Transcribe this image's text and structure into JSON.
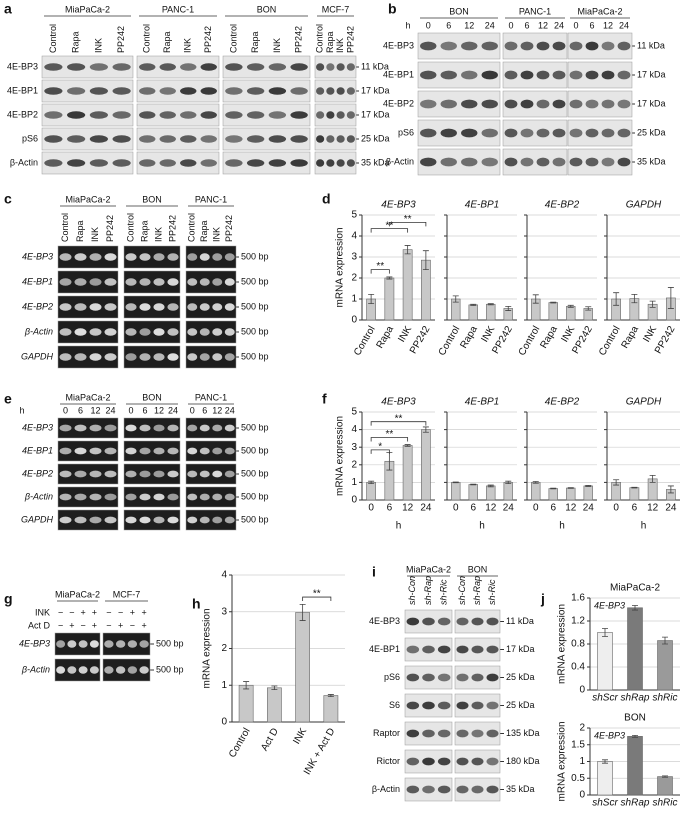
{
  "panels": [
    {
      "letter": "a",
      "groups": [
        {
          "name": "MiaPaCa-2",
          "lanes": [
            "Control",
            "Rapa",
            "INK",
            "PP242"
          ]
        },
        {
          "name": "PANC-1",
          "lanes": [
            "Control",
            "Rapa",
            "INK",
            "PP242"
          ]
        },
        {
          "name": "BON",
          "lanes": [
            "Control",
            "Rapa",
            "INK",
            "PP242"
          ]
        },
        {
          "name": "MCF-7",
          "lanes": [
            "Control",
            "Rapa",
            "INK",
            "PP242"
          ]
        }
      ],
      "rows": [
        {
          "name": "4E-BP3",
          "size": "11 kDa"
        },
        {
          "name": "4E-BP1",
          "size": "17 kDa"
        },
        {
          "name": "4E-BP2",
          "size": "17 kDa"
        },
        {
          "name": "pS6",
          "size": "25 kDa"
        },
        {
          "name": "β-Actin",
          "size": "35 kDa"
        }
      ]
    },
    {
      "letter": "b",
      "time_label": "h",
      "groups": [
        {
          "name": "BON",
          "lanes": [
            "0",
            "6",
            "12",
            "24"
          ]
        },
        {
          "name": "PANC-1",
          "lanes": [
            "0",
            "6",
            "12",
            "24"
          ]
        },
        {
          "name": "MiaPaCa-2",
          "lanes": [
            "0",
            "6",
            "12",
            "24"
          ]
        }
      ],
      "rows": [
        {
          "name": "4E-BP3",
          "size": "11 kDa"
        },
        {
          "name": "4E-BP1",
          "size": "17 kDa"
        },
        {
          "name": "4E-BP2",
          "size": "17 kDa"
        },
        {
          "name": "pS6",
          "size": "25 kDa"
        },
        {
          "name": "β-Actin",
          "size": "35 kDa"
        }
      ]
    },
    {
      "letter": "c",
      "groups": [
        {
          "name": "MiaPaCa-2",
          "lanes": [
            "Control",
            "Rapa",
            "INK",
            "PP242"
          ]
        },
        {
          "name": "BON",
          "lanes": [
            "Control",
            "Rapa",
            "INK",
            "PP242"
          ]
        },
        {
          "name": "PANC-1",
          "lanes": [
            "Control",
            "Rapa",
            "INK",
            "PP242"
          ]
        }
      ],
      "rows": [
        {
          "name": "4E-BP3",
          "size": "500 bp"
        },
        {
          "name": "4E-BP1",
          "size": "500 bp"
        },
        {
          "name": "4E-BP2",
          "size": "500 bp"
        },
        {
          "name": "β-Actin",
          "size": "500 bp"
        },
        {
          "name": "GAPDH",
          "size": "500 bp"
        }
      ]
    },
    {
      "letter": "e",
      "time_label": "h",
      "groups": [
        {
          "name": "MiaPaCa-2",
          "lanes": [
            "0",
            "6",
            "12",
            "24"
          ]
        },
        {
          "name": "BON",
          "lanes": [
            "0",
            "6",
            "12",
            "24"
          ]
        },
        {
          "name": "PANC-1",
          "lanes": [
            "0",
            "6",
            "12",
            "24"
          ]
        }
      ],
      "rows": [
        {
          "name": "4E-BP3",
          "size": "500 bp"
        },
        {
          "name": "4E-BP1",
          "size": "500 bp"
        },
        {
          "name": "4E-BP2",
          "size": "500 bp"
        },
        {
          "name": "β-Actin",
          "size": "500 bp"
        },
        {
          "name": "GAPDH",
          "size": "500 bp"
        }
      ]
    },
    {
      "letter": "g",
      "groups": [
        {
          "name": "MiaPaCa-2"
        },
        {
          "name": "MCF-7"
        }
      ],
      "conditions": [
        {
          "name": "INK",
          "signs": [
            "−",
            "−",
            "+",
            "+",
            "−",
            "−",
            "+",
            "+"
          ]
        },
        {
          "name": "Act D",
          "signs": [
            "−",
            "+",
            "−",
            "+",
            "−",
            "+",
            "−",
            "+"
          ]
        }
      ],
      "rows": [
        {
          "name": "4E-BP3",
          "size": "500 bp"
        },
        {
          "name": "β-Actin",
          "size": "500 bp"
        }
      ]
    },
    {
      "letter": "i",
      "groups": [
        {
          "name": "MiaPaCa-2",
          "lanes": [
            "sh-Con",
            "sh-Rap",
            "sh-Ric"
          ]
        },
        {
          "name": "BON",
          "lanes": [
            "sh-Con",
            "sh-Rap",
            "sh-Ric"
          ]
        }
      ],
      "rows": [
        {
          "name": "4E-BP3",
          "size": "11 kDa"
        },
        {
          "name": "4E-BP1",
          "size": "17 kDa"
        },
        {
          "name": "pS6",
          "size": "25 kDa"
        },
        {
          "name": "S6",
          "size": "25 kDa"
        },
        {
          "name": "Raptor",
          "size": "135 kDa"
        },
        {
          "name": "Rictor",
          "size": "180 kDa"
        },
        {
          "name": "β-Actin",
          "size": "35 kDa"
        }
      ]
    }
  ],
  "chart_data": [
    {
      "type": "bar",
      "letter": "d",
      "title": "4E-BP3",
      "ylabel": "mRNA expression",
      "categories": [
        "Control",
        "Rapa",
        "INK",
        "PP242"
      ],
      "values": [
        1,
        2,
        3.35,
        2.85
      ],
      "errors": [
        0.22,
        0.05,
        0.2,
        0.45
      ],
      "ylim": [
        0,
        5
      ],
      "yticks": [
        0,
        1,
        2,
        3,
        4,
        5
      ],
      "grid": true,
      "color": "#c8c8c8",
      "rotate_labels": true,
      "annotations": [
        "**",
        "**",
        "**"
      ]
    },
    {
      "type": "bar",
      "title": "4E-BP1",
      "categories": [
        "Control",
        "Rapa",
        "INK",
        "PP242"
      ],
      "values": [
        1,
        0.72,
        0.75,
        0.55
      ],
      "errors": [
        0.15,
        0.03,
        0.03,
        0.1
      ],
      "ylim": [
        0,
        5
      ],
      "yticks": [
        0,
        1,
        2,
        3,
        4,
        5
      ],
      "tick_labels": false,
      "grid": true,
      "color": "#c8c8c8",
      "rotate_labels": true
    },
    {
      "type": "bar",
      "title": "4E-BP2",
      "categories": [
        "Control",
        "Rapa",
        "INK",
        "PP242"
      ],
      "values": [
        1,
        0.83,
        0.65,
        0.55
      ],
      "errors": [
        0.2,
        0.02,
        0.05,
        0.08
      ],
      "ylim": [
        0,
        5
      ],
      "yticks": [
        0,
        1,
        2,
        3,
        4,
        5
      ],
      "tick_labels": false,
      "grid": true,
      "color": "#c8c8c8",
      "rotate_labels": true
    },
    {
      "type": "bar",
      "title": "GAPDH",
      "categories": [
        "Control",
        "Rapa",
        "INK",
        "PP242"
      ],
      "values": [
        1,
        1.02,
        0.75,
        1.05
      ],
      "errors": [
        0.3,
        0.2,
        0.15,
        0.5
      ],
      "ylim": [
        0,
        5
      ],
      "yticks": [
        0,
        1,
        2,
        3,
        4,
        5
      ],
      "tick_labels": false,
      "grid": true,
      "color": "#c8c8c8",
      "rotate_labels": true
    },
    {
      "type": "bar",
      "letter": "f",
      "title": "4E-BP3",
      "ylabel": "mRNA expression",
      "xlabel": "h",
      "categories": [
        "0",
        "6",
        "12",
        "24"
      ],
      "values": [
        1,
        2.2,
        3.1,
        4
      ],
      "errors": [
        0.07,
        0.5,
        0.05,
        0.15
      ],
      "ylim": [
        0,
        5
      ],
      "yticks": [
        0,
        1,
        2,
        3,
        4,
        5
      ],
      "grid": true,
      "color": "#c8c8c8",
      "annotations": [
        "*",
        "**",
        "**"
      ]
    },
    {
      "type": "bar",
      "title": "4E-BP1",
      "xlabel": "h",
      "categories": [
        "0",
        "6",
        "12",
        "24"
      ],
      "values": [
        1,
        0.88,
        0.8,
        1.0
      ],
      "errors": [
        0.02,
        0.02,
        0.05,
        0.07
      ],
      "ylim": [
        0,
        5
      ],
      "yticks": [
        0,
        1,
        2,
        3,
        4,
        5
      ],
      "tick_labels": false,
      "grid": true,
      "color": "#c8c8c8"
    },
    {
      "type": "bar",
      "title": "4E-BP2",
      "xlabel": "h",
      "categories": [
        "0",
        "6",
        "12",
        "24"
      ],
      "values": [
        1,
        0.65,
        0.68,
        0.8
      ],
      "errors": [
        0.05,
        0.02,
        0.02,
        0.03
      ],
      "ylim": [
        0,
        5
      ],
      "yticks": [
        0,
        1,
        2,
        3,
        4,
        5
      ],
      "tick_labels": false,
      "grid": true,
      "color": "#c8c8c8"
    },
    {
      "type": "bar",
      "title": "GAPDH",
      "xlabel": "h",
      "categories": [
        "0",
        "6",
        "12",
        "24"
      ],
      "values": [
        1,
        0.7,
        1.2,
        0.6
      ],
      "errors": [
        0.15,
        0.02,
        0.2,
        0.2
      ],
      "ylim": [
        0,
        5
      ],
      "yticks": [
        0,
        1,
        2,
        3,
        4,
        5
      ],
      "tick_labels": false,
      "grid": true,
      "color": "#c8c8c8"
    },
    {
      "type": "bar",
      "letter": "h",
      "ylabel": "mRNA expression",
      "categories": [
        "Control",
        "Act D",
        "INK",
        "INK + Act D"
      ],
      "values": [
        1,
        0.93,
        2.98,
        0.72
      ],
      "errors": [
        0.1,
        0.05,
        0.22,
        0.03
      ],
      "ylim": [
        0,
        4
      ],
      "yticks": [
        0,
        1,
        2,
        3,
        4
      ],
      "grid": true,
      "color": "#c8c8c8",
      "rotate_labels": true,
      "annotations": [
        "**"
      ]
    },
    {
      "type": "bar",
      "letter": "j",
      "title": "MiaPaCa-2",
      "ylabel": "mRNA expression",
      "categories": [
        "shScr",
        "shRap",
        "shRic"
      ],
      "values": [
        1,
        1.43,
        0.86
      ],
      "errors": [
        0.07,
        0.04,
        0.06
      ],
      "ylim": [
        0,
        1.6
      ],
      "yticks": [
        0,
        0.4,
        0.8,
        1.2,
        1.6
      ],
      "grid": true,
      "colors": [
        "#eeeeee",
        "#7a7a7a",
        "#9a9a9a"
      ],
      "italic_labels": true,
      "annotations": [
        "4E-BP3"
      ]
    },
    {
      "type": "bar",
      "title": "BON",
      "ylabel": "mRNA expression",
      "categories": [
        "shScr",
        "shRap",
        "shRic"
      ],
      "values": [
        1,
        1.75,
        0.55
      ],
      "errors": [
        0.05,
        0.03,
        0.02
      ],
      "ylim": [
        0,
        2
      ],
      "yticks": [
        0,
        0.5,
        1,
        1.5,
        2
      ],
      "grid": true,
      "colors": [
        "#eeeeee",
        "#7a7a7a",
        "#9a9a9a"
      ],
      "italic_labels": true,
      "annotations": [
        "4E-BP3"
      ]
    }
  ]
}
